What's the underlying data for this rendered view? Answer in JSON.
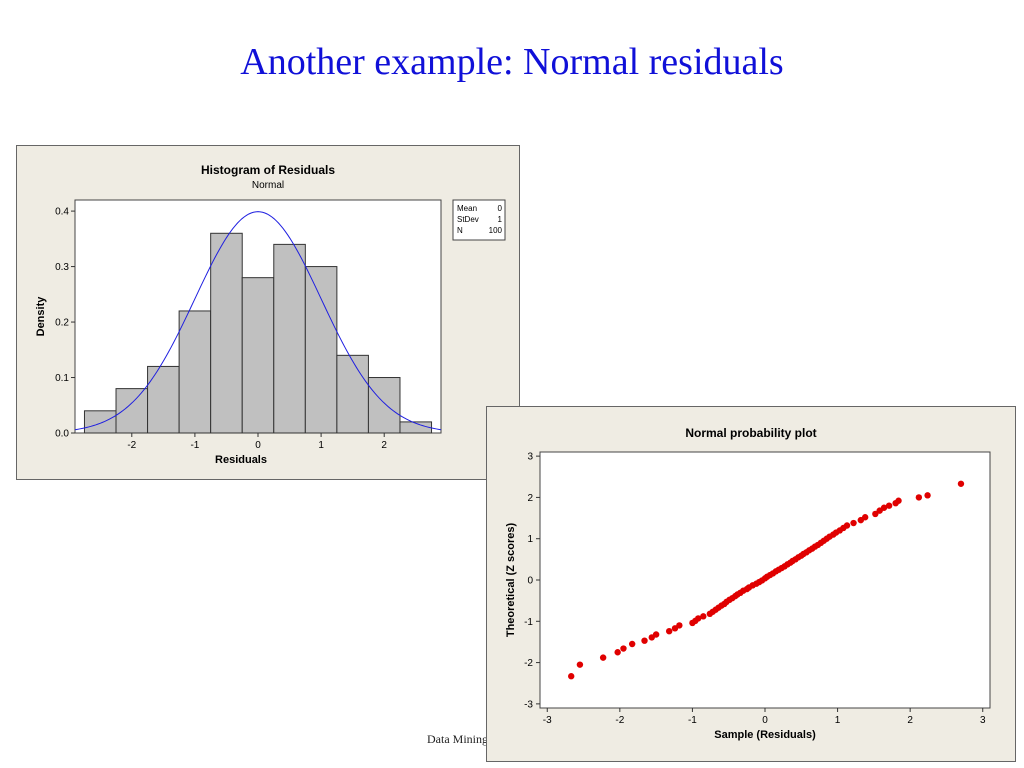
{
  "slide": {
    "title": "Another example: Normal residuals",
    "footer": "Data Mining"
  },
  "chart_data": [
    {
      "type": "bar",
      "title": "Histogram of Residuals",
      "subtitle": "Normal",
      "xlabel": "Residuals",
      "ylabel": "Density",
      "xlim": [
        -2.9,
        2.9
      ],
      "ylim": [
        0,
        0.42
      ],
      "xticks": [
        -2,
        -1,
        0,
        1,
        2
      ],
      "yticks": [
        0.0,
        0.1,
        0.2,
        0.3,
        0.4
      ],
      "ytick_labels": [
        "0.0",
        "0.1",
        "0.2",
        "0.3",
        "0.4"
      ],
      "bin_edges": [
        -2.75,
        -2.25,
        -1.75,
        -1.25,
        -0.75,
        -0.25,
        0.25,
        0.75,
        1.25,
        1.75,
        2.25,
        2.75
      ],
      "values": [
        0.04,
        0.08,
        0.12,
        0.22,
        0.36,
        0.28,
        0.34,
        0.3,
        0.14,
        0.1,
        0.02
      ],
      "fit_curve": {
        "distribution": "normal",
        "mean": 0,
        "stdev": 1,
        "color": "#1f1fe0"
      },
      "legend": {
        "placement": "right",
        "entries": [
          {
            "label": "Mean",
            "value": "0"
          },
          {
            "label": "StDev",
            "value": "1"
          },
          {
            "label": "N",
            "value": "100"
          }
        ]
      },
      "bar_color": "#c0c0c0",
      "grid": false
    },
    {
      "type": "scatter",
      "title": "Normal probability plot",
      "xlabel": "Sample (Residuals)",
      "ylabel": "Theoretical (Z scores)",
      "xlim": [
        -3.1,
        3.1
      ],
      "ylim": [
        -3.1,
        3.1
      ],
      "xticks": [
        -3,
        -2,
        -1,
        0,
        1,
        2,
        3
      ],
      "yticks": [
        -3,
        -2,
        -1,
        0,
        1,
        2,
        3
      ],
      "marker_color": "#e00000",
      "grid": false,
      "x": [
        -2.67,
        -2.55,
        -2.23,
        -2.03,
        -1.95,
        -1.83,
        -1.66,
        -1.56,
        -1.5,
        -1.32,
        -1.24,
        -1.18,
        -1.0,
        -0.96,
        -0.92,
        -0.85,
        -0.76,
        -0.72,
        -0.68,
        -0.64,
        -0.6,
        -0.56,
        -0.53,
        -0.49,
        -0.45,
        -0.41,
        -0.38,
        -0.34,
        -0.3,
        -0.25,
        -0.22,
        -0.17,
        -0.12,
        -0.08,
        -0.04,
        0.0,
        0.03,
        0.07,
        0.11,
        0.15,
        0.19,
        0.23,
        0.27,
        0.31,
        0.35,
        0.38,
        0.42,
        0.46,
        0.5,
        0.53,
        0.57,
        0.61,
        0.65,
        0.69,
        0.73,
        0.77,
        0.81,
        0.85,
        0.89,
        0.94,
        0.98,
        1.03,
        1.08,
        1.13,
        1.22,
        1.32,
        1.38,
        1.52,
        1.58,
        1.64,
        1.71,
        1.8,
        1.84,
        2.12,
        2.24,
        2.7
      ],
      "y": [
        -2.33,
        -2.05,
        -1.88,
        -1.75,
        -1.66,
        -1.55,
        -1.47,
        -1.39,
        -1.32,
        -1.24,
        -1.17,
        -1.1,
        -1.04,
        -0.99,
        -0.93,
        -0.88,
        -0.82,
        -0.77,
        -0.72,
        -0.67,
        -0.62,
        -0.58,
        -0.53,
        -0.48,
        -0.44,
        -0.39,
        -0.35,
        -0.31,
        -0.26,
        -0.22,
        -0.18,
        -0.13,
        -0.09,
        -0.05,
        -0.01,
        0.04,
        0.08,
        0.12,
        0.16,
        0.21,
        0.25,
        0.29,
        0.33,
        0.38,
        0.42,
        0.46,
        0.5,
        0.55,
        0.59,
        0.63,
        0.67,
        0.72,
        0.76,
        0.81,
        0.85,
        0.9,
        0.95,
        1.0,
        1.05,
        1.1,
        1.15,
        1.2,
        1.26,
        1.32,
        1.38,
        1.45,
        1.52,
        1.6,
        1.68,
        1.75,
        1.8,
        1.86,
        1.92,
        2.0,
        2.05,
        2.33
      ]
    }
  ]
}
